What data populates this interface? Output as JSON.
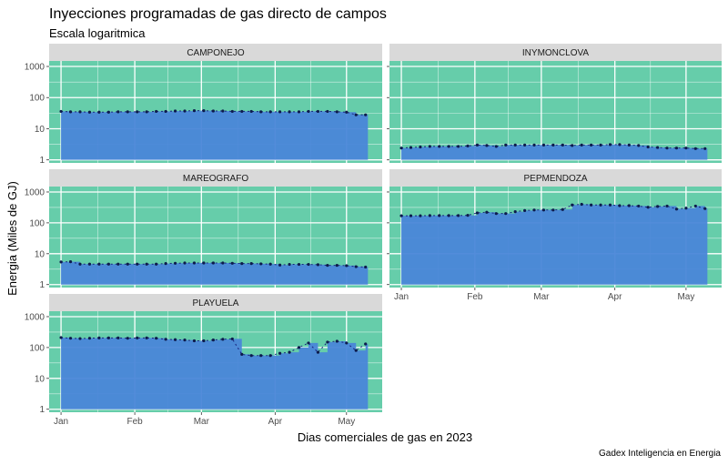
{
  "chart_data": {
    "type": "area",
    "title": "Inyecciones programadas de gas directo de campos",
    "subtitle": "Escala logaritmica",
    "xlabel": "Dias comerciales de gas en 2023",
    "ylabel": "Energia (Miles de GJ)",
    "caption": "Gadex Inteligencia en Energia",
    "y_scale": "log10",
    "ylim": [
      0.8,
      1500
    ],
    "y_ticks": [
      1,
      10,
      100,
      1000
    ],
    "y_tick_labels": [
      "1",
      "10",
      "100",
      "1000"
    ],
    "x_tick_labels": [
      "Jan",
      "Feb",
      "Mar",
      "Apr",
      "May"
    ],
    "x_tick_days": [
      1,
      32,
      60,
      91,
      121
    ],
    "xlim": [
      -4,
      136
    ],
    "colors": {
      "panel_bg": "#66cdaa",
      "area_fill": "#4a86d8",
      "points": "#0d1b4c",
      "line": "#1a237e",
      "strip_bg": "#d9d9d9",
      "grid": "#ffffff"
    },
    "panels": [
      {
        "name": "CAMPONEJO",
        "days": [
          1,
          5,
          9,
          13,
          17,
          21,
          25,
          29,
          33,
          37,
          41,
          45,
          49,
          53,
          57,
          61,
          65,
          69,
          73,
          77,
          81,
          85,
          89,
          93,
          97,
          101,
          105,
          109,
          113,
          117,
          121,
          125,
          129
        ],
        "values": [
          36,
          35,
          35,
          34,
          34,
          34,
          35,
          35,
          35,
          35,
          36,
          36,
          37,
          37,
          38,
          38,
          37,
          37,
          36,
          36,
          36,
          35,
          35,
          35,
          35,
          35,
          36,
          36,
          36,
          35,
          34,
          28,
          28
        ]
      },
      {
        "name": "INYMONCLOVA",
        "days": [
          1,
          5,
          9,
          13,
          17,
          21,
          25,
          29,
          33,
          37,
          41,
          45,
          49,
          53,
          57,
          61,
          65,
          69,
          73,
          77,
          81,
          85,
          89,
          93,
          97,
          101,
          105,
          109,
          113,
          117,
          121,
          125,
          129
        ],
        "values": [
          2.4,
          2.5,
          2.6,
          2.7,
          2.7,
          2.7,
          2.7,
          2.8,
          3.0,
          2.9,
          2.7,
          3.0,
          3.0,
          3.0,
          3.0,
          3.0,
          3.0,
          3.0,
          2.9,
          3.0,
          3.0,
          3.0,
          3.1,
          3.1,
          3.0,
          2.9,
          2.6,
          2.5,
          2.4,
          2.4,
          2.4,
          2.3,
          2.3
        ]
      },
      {
        "name": "MAREOGRAFO",
        "days": [
          1,
          5,
          9,
          13,
          17,
          21,
          25,
          29,
          33,
          37,
          41,
          45,
          49,
          53,
          57,
          61,
          65,
          69,
          73,
          77,
          81,
          85,
          89,
          93,
          97,
          101,
          105,
          109,
          113,
          117,
          121,
          125,
          129
        ],
        "values": [
          5.4,
          5.5,
          4.6,
          4.6,
          4.6,
          4.6,
          4.6,
          4.6,
          4.6,
          4.6,
          4.6,
          4.8,
          4.9,
          5.0,
          5.0,
          5.0,
          5.0,
          5.0,
          4.9,
          4.8,
          4.8,
          4.7,
          4.6,
          4.3,
          4.5,
          4.5,
          4.5,
          4.4,
          4.2,
          4.2,
          4.1,
          3.8,
          3.7
        ]
      },
      {
        "name": "PEPMENDOZA",
        "days": [
          1,
          5,
          9,
          13,
          17,
          21,
          25,
          29,
          33,
          37,
          41,
          45,
          49,
          53,
          57,
          61,
          65,
          69,
          73,
          77,
          81,
          85,
          89,
          93,
          97,
          101,
          105,
          109,
          113,
          117,
          121,
          125,
          129
        ],
        "values": [
          170,
          170,
          170,
          172,
          172,
          172,
          172,
          175,
          210,
          220,
          200,
          200,
          230,
          250,
          260,
          260,
          260,
          270,
          380,
          400,
          380,
          380,
          380,
          360,
          360,
          350,
          320,
          340,
          350,
          280,
          300,
          350,
          290
        ]
      },
      {
        "name": "PLAYUELA",
        "days": [
          1,
          5,
          9,
          13,
          17,
          21,
          25,
          29,
          33,
          37,
          41,
          45,
          49,
          53,
          57,
          61,
          65,
          69,
          73,
          77,
          81,
          85,
          89,
          93,
          97,
          101,
          105,
          109,
          113,
          117,
          121,
          125,
          129
        ],
        "values": [
          210,
          200,
          195,
          200,
          205,
          205,
          205,
          200,
          205,
          205,
          200,
          185,
          180,
          175,
          165,
          165,
          175,
          185,
          190,
          60,
          55,
          55,
          55,
          65,
          70,
          100,
          140,
          70,
          150,
          160,
          140,
          80,
          130
        ]
      }
    ]
  }
}
